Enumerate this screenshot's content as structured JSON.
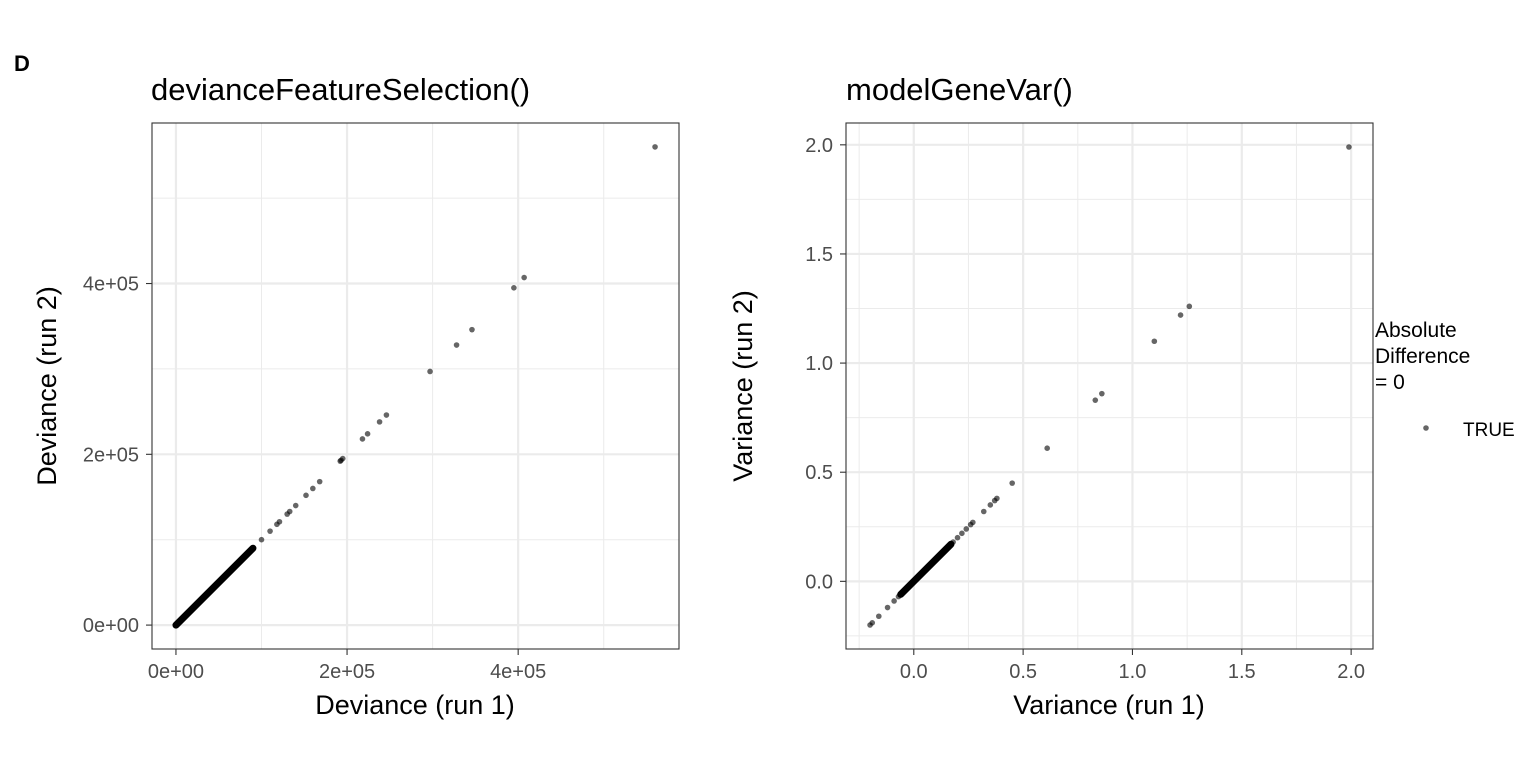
{
  "figure": {
    "panel_tag": "D"
  },
  "legend": {
    "title_lines": [
      "Absolute",
      "Difference",
      "= 0"
    ],
    "items": [
      {
        "label": "TRUE",
        "color": "#000000",
        "alpha": 0.55
      }
    ]
  },
  "colors": {
    "point": "#000000",
    "grid": "#ebebeb",
    "panel_border": "#333333",
    "tick_text": "#4d4d4d"
  },
  "chart_data": [
    {
      "type": "scatter",
      "title": "devianceFeatureSelection()",
      "xlabel": "Deviance (run 1)",
      "ylabel": "Deviance (run 2)",
      "xlim": [
        -28000,
        588000
      ],
      "ylim": [
        -28000,
        588000
      ],
      "x_ticks": [
        0,
        200000,
        400000
      ],
      "x_tick_labels": [
        "0e+00",
        "2e+05",
        "4e+05"
      ],
      "y_ticks": [
        0,
        200000,
        400000
      ],
      "y_tick_labels": [
        "0e+00",
        "2e+05",
        "4e+05"
      ],
      "grid": true,
      "dense_segment": {
        "from": 0,
        "to": 90000
      },
      "points": [
        [
          0,
          0
        ],
        [
          2000,
          2000
        ],
        [
          5000,
          5000
        ],
        [
          8000,
          8000
        ],
        [
          12000,
          12000
        ],
        [
          100000,
          100000
        ],
        [
          110000,
          110000
        ],
        [
          118000,
          118000
        ],
        [
          121000,
          121000
        ],
        [
          130000,
          130000
        ],
        [
          133000,
          133000
        ],
        [
          140000,
          140000
        ],
        [
          152000,
          152000
        ],
        [
          160000,
          160000
        ],
        [
          168000,
          168000
        ],
        [
          192000,
          192000
        ],
        [
          193000,
          193000
        ],
        [
          195000,
          195000
        ],
        [
          218000,
          218000
        ],
        [
          224000,
          224000
        ],
        [
          238000,
          238000
        ],
        [
          246000,
          246000
        ],
        [
          297000,
          297000
        ],
        [
          328000,
          328000
        ],
        [
          346000,
          346000
        ],
        [
          395000,
          395000
        ],
        [
          407000,
          407000
        ],
        [
          560000,
          560000
        ]
      ]
    },
    {
      "type": "scatter",
      "title": "modelGeneVar()",
      "xlabel": "Variance (run 1)",
      "ylabel": "Variance (run 2)",
      "xlim": [
        -0.31,
        2.1
      ],
      "ylim": [
        -0.31,
        2.1
      ],
      "x_ticks": [
        0.0,
        0.5,
        1.0,
        1.5,
        2.0
      ],
      "x_tick_labels": [
        "0.0",
        "0.5",
        "1.0",
        "1.5",
        "2.0"
      ],
      "y_ticks": [
        0.0,
        0.5,
        1.0,
        1.5,
        2.0
      ],
      "y_tick_labels": [
        "0.0",
        "0.5",
        "1.0",
        "1.5",
        "2.0"
      ],
      "grid": true,
      "dense_segment": {
        "from": -0.06,
        "to": 0.17
      },
      "points": [
        [
          -0.2,
          -0.2
        ],
        [
          -0.19,
          -0.19
        ],
        [
          -0.16,
          -0.16
        ],
        [
          -0.12,
          -0.12
        ],
        [
          -0.09,
          -0.09
        ],
        [
          -0.07,
          -0.07
        ],
        [
          0.18,
          0.18
        ],
        [
          0.2,
          0.2
        ],
        [
          0.22,
          0.22
        ],
        [
          0.24,
          0.24
        ],
        [
          0.26,
          0.26
        ],
        [
          0.27,
          0.27
        ],
        [
          0.32,
          0.32
        ],
        [
          0.35,
          0.35
        ],
        [
          0.37,
          0.37
        ],
        [
          0.38,
          0.38
        ],
        [
          0.45,
          0.45
        ],
        [
          0.61,
          0.61
        ],
        [
          0.83,
          0.83
        ],
        [
          0.86,
          0.86
        ],
        [
          1.1,
          1.1
        ],
        [
          1.22,
          1.22
        ],
        [
          1.26,
          1.26
        ],
        [
          1.99,
          1.99
        ]
      ]
    }
  ]
}
